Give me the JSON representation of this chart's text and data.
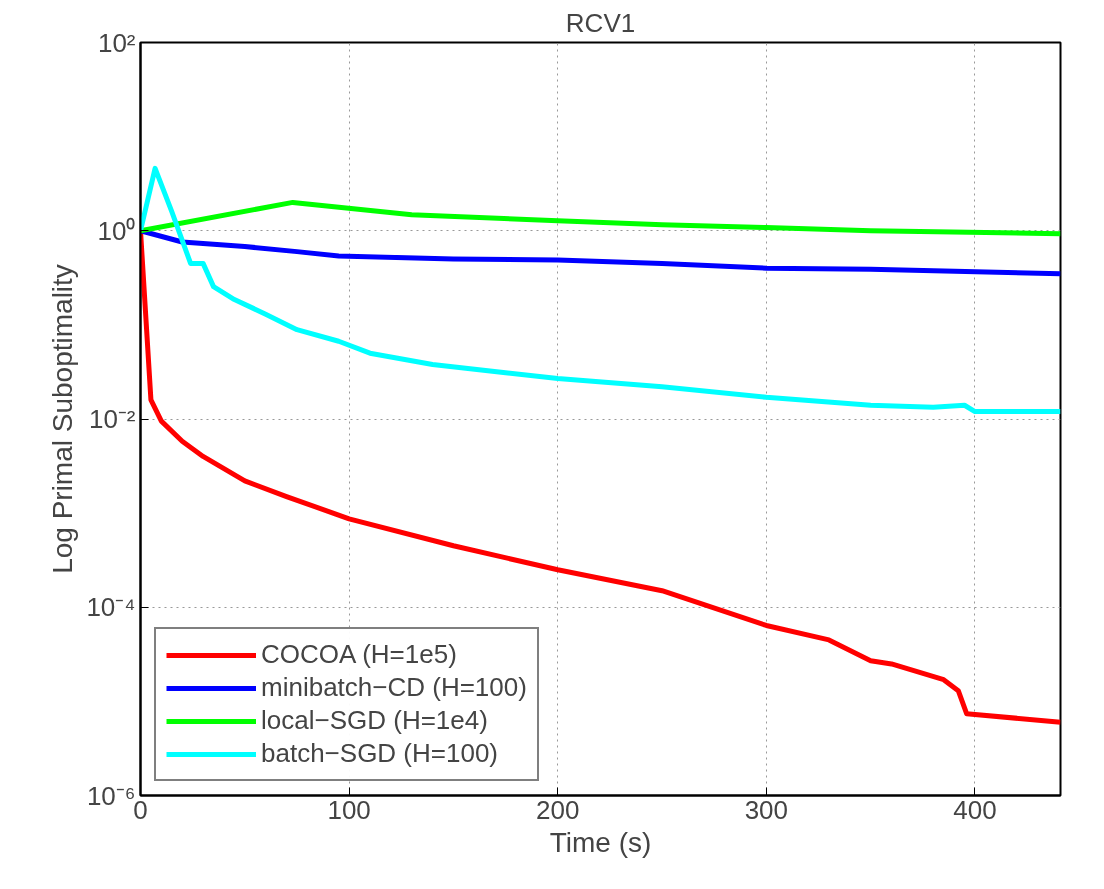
{
  "chart_data": {
    "type": "line",
    "title": "RCV1",
    "xlabel": "Time (s)",
    "ylabel": "Log Primal Suboptimality",
    "log": true,
    "grid": true,
    "legend": "bottom left",
    "line_style": "solid",
    "marker": "none",
    "xlim": [
      0,
      441
    ],
    "xticks": [
      0,
      100,
      200,
      300,
      400
    ],
    "ylim": [
      1e-06,
      100
    ],
    "yticks": [
      {
        "value": 1e-06,
        "label": "10⁻⁶"
      },
      {
        "value": 0.0001,
        "label": "10⁻⁴"
      },
      {
        "value": 0.01,
        "label": "10⁻²"
      },
      {
        "value": 1,
        "label": "10⁰"
      },
      {
        "value": 100,
        "label": "10²"
      }
    ],
    "series": [
      {
        "name": "COCOA (H=1e5)",
        "color": "#ff0000",
        "x": [
          0,
          5,
          10,
          20,
          30,
          50,
          70,
          100,
          150,
          200,
          250,
          300,
          330,
          350,
          360,
          385,
          392,
          396,
          441
        ],
        "values": [
          1,
          0.016,
          0.0095,
          0.0058,
          0.004,
          0.0022,
          0.0015,
          0.00087,
          0.00045,
          0.00025,
          0.00015,
          6.4e-05,
          4.5e-05,
          2.7e-05,
          2.5e-05,
          1.7e-05,
          1.3e-05,
          7.4e-06,
          6e-06
        ]
      },
      {
        "name": "minibatch−CD (H=100)",
        "color": "#0000ff",
        "x": [
          0,
          20,
          50,
          75,
          95,
          150,
          200,
          250,
          300,
          350,
          441
        ],
        "values": [
          1,
          0.76,
          0.68,
          0.6,
          0.54,
          0.5,
          0.49,
          0.45,
          0.4,
          0.39,
          0.35
        ]
      },
      {
        "name": "local−SGD (H=1e4)",
        "color": "#00ff00",
        "x": [
          0,
          73,
          130,
          200,
          250,
          300,
          350,
          441
        ],
        "values": [
          1,
          2.0,
          1.48,
          1.28,
          1.16,
          1.08,
          1.0,
          0.93
        ]
      },
      {
        "name": "batch−SGD (H=100)",
        "color": "#00ffff",
        "x": [
          0,
          7,
          15,
          24,
          30,
          35,
          45,
          60,
          75,
          95,
          110,
          140,
          175,
          200,
          250,
          300,
          350,
          380,
          395,
          400,
          441
        ],
        "values": [
          1,
          4.6,
          1.6,
          0.45,
          0.45,
          0.255,
          0.186,
          0.13,
          0.089,
          0.067,
          0.05,
          0.038,
          0.031,
          0.027,
          0.022,
          0.017,
          0.014,
          0.0133,
          0.014,
          0.012,
          0.012
        ]
      }
    ]
  }
}
